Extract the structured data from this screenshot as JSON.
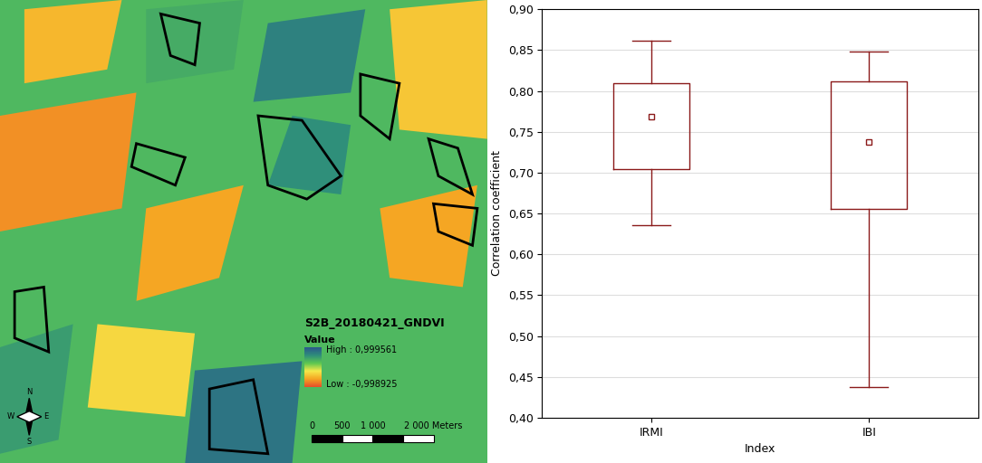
{
  "map": {
    "legend_title": "S2B_20180421_GNDVI",
    "legend_subtitle": "Value",
    "high_label": "High : 0,999561",
    "low_label": "Low : -0,998925",
    "scale_labels": [
      "0",
      "500",
      "1 000",
      "2 000 Meters"
    ],
    "compass": [
      "N",
      "S",
      "W",
      "E"
    ]
  },
  "chart_data": {
    "type": "box",
    "categories": [
      "IRMI",
      "IBI"
    ],
    "x_label": "Index",
    "y_label": "Correlation coefficient",
    "boxes": [
      {
        "whislo": 0.636,
        "q1": 0.704,
        "median": 0.768,
        "q3": 0.809,
        "whishi": 0.862
      },
      {
        "whislo": 0.437,
        "q1": 0.656,
        "median": 0.738,
        "q3": 0.812,
        "whishi": 0.848
      }
    ],
    "color": "#8b1a1a",
    "ylim": [
      0.4,
      0.9
    ],
    "yticks": [
      {
        "value": 0.4,
        "label": "0,40"
      },
      {
        "value": 0.45,
        "label": "0,45"
      },
      {
        "value": 0.5,
        "label": "0,50"
      },
      {
        "value": 0.55,
        "label": "0,55"
      },
      {
        "value": 0.6,
        "label": "0,60"
      },
      {
        "value": 0.65,
        "label": "0,65"
      },
      {
        "value": 0.7,
        "label": "0,70"
      },
      {
        "value": 0.75,
        "label": "0,75"
      },
      {
        "value": 0.8,
        "label": "0,80"
      },
      {
        "value": 0.85,
        "label": "0,85"
      },
      {
        "value": 0.9,
        "label": "0,90"
      }
    ],
    "grid": true
  }
}
